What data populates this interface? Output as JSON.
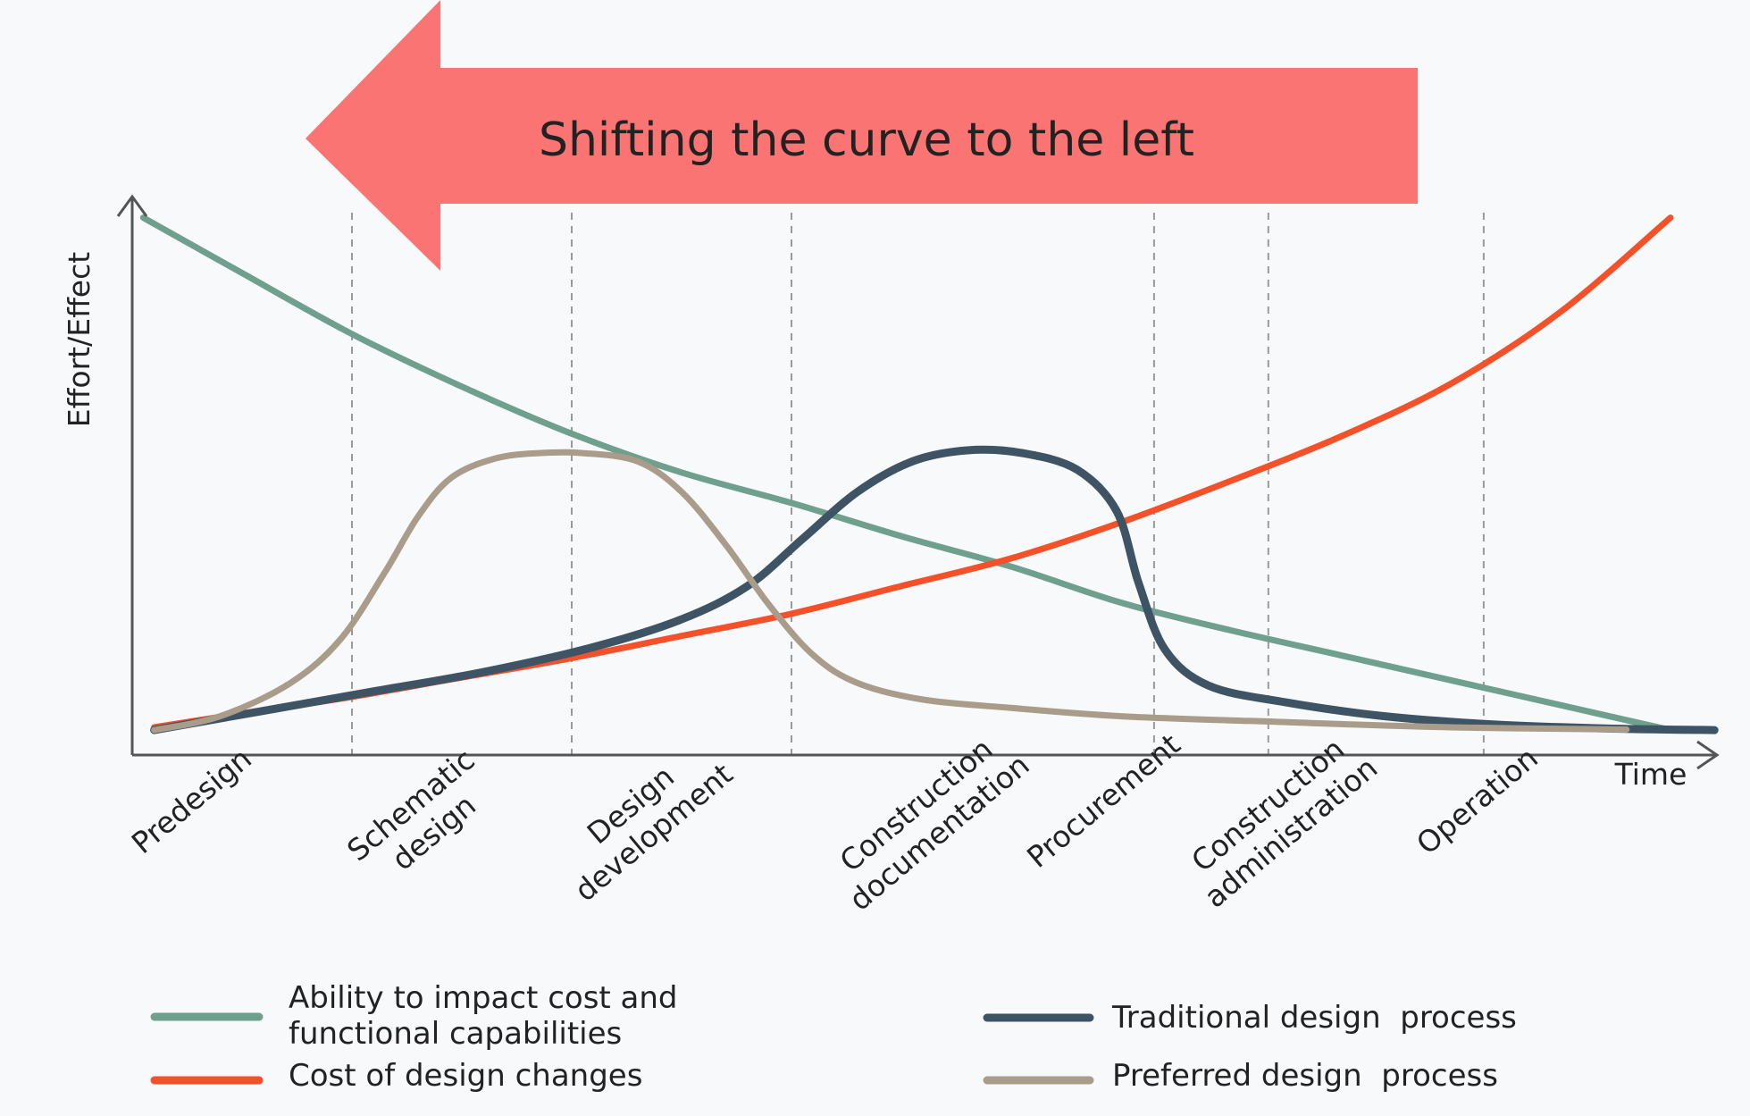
{
  "banner": {
    "text": "Shifting the curve to the left",
    "color": "#fb7474"
  },
  "chart_data": {
    "type": "line",
    "title": "",
    "xlabel": "Time",
    "ylabel": "Effort/Effect",
    "x_range": [
      0,
      7
    ],
    "ylim": [
      0,
      100
    ],
    "grid": "vertical dashed lines at phase boundaries",
    "legend_position": "bottom",
    "phases": [
      {
        "label": [
          "Predesign"
        ],
        "x": 0.3
      },
      {
        "label": [
          "Schematic",
          "design"
        ],
        "x": 1.35
      },
      {
        "label": [
          "Design",
          "development"
        ],
        "x": 2.35
      },
      {
        "label": [
          "Construction",
          "documentation"
        ],
        "x": 3.65
      },
      {
        "label": [
          "Procurement"
        ],
        "x": 4.45
      },
      {
        "label": [
          "Construction",
          "administration"
        ],
        "x": 5.25
      },
      {
        "label": [
          "Operation"
        ],
        "x": 6.15
      }
    ],
    "boundaries": [
      1.0,
      2.0,
      3.0,
      4.65,
      5.17,
      6.15
    ],
    "series": [
      {
        "name": "Ability to impact cost and functional capabilities",
        "legend_lines": [
          "Ability to impact cost and",
          "functional capabilities"
        ],
        "color": "#6fa08e",
        "width": 7,
        "points": [
          [
            0.05,
            97
          ],
          [
            0.5,
            87
          ],
          [
            1.0,
            76
          ],
          [
            1.5,
            66.5
          ],
          [
            2.0,
            58
          ],
          [
            2.5,
            51
          ],
          [
            3.0,
            45.5
          ],
          [
            3.5,
            39.5
          ],
          [
            4.0,
            34
          ],
          [
            4.5,
            27.5
          ],
          [
            5.0,
            22.5
          ],
          [
            5.5,
            18
          ],
          [
            6.0,
            13.5
          ],
          [
            6.5,
            9
          ],
          [
            7.0,
            4.5
          ]
        ]
      },
      {
        "name": "Cost of design changes",
        "legend_lines": [
          "Cost of design changes"
        ],
        "color": "#f2512a",
        "width": 7,
        "points": [
          [
            0.1,
            5
          ],
          [
            0.5,
            7.5
          ],
          [
            1.0,
            10.5
          ],
          [
            1.5,
            14
          ],
          [
            2.0,
            17.5
          ],
          [
            2.5,
            21.5
          ],
          [
            3.0,
            25.5
          ],
          [
            3.5,
            30.5
          ],
          [
            4.0,
            35.5
          ],
          [
            4.5,
            42
          ],
          [
            5.0,
            49.5
          ],
          [
            5.5,
            57.5
          ],
          [
            6.0,
            67
          ],
          [
            6.5,
            80
          ],
          [
            7.0,
            97
          ]
        ]
      },
      {
        "name": "Traditional design process",
        "legend_lines": [
          "Traditional design  process"
        ],
        "color": "#3e5464",
        "width": 9,
        "points": [
          [
            0.1,
            4.5
          ],
          [
            0.6,
            8
          ],
          [
            1.1,
            11.5
          ],
          [
            1.6,
            15
          ],
          [
            2.1,
            19.5
          ],
          [
            2.5,
            24.5
          ],
          [
            2.8,
            30.5
          ],
          [
            3.05,
            39
          ],
          [
            3.3,
            47.5
          ],
          [
            3.55,
            53
          ],
          [
            3.8,
            55
          ],
          [
            4.05,
            54.5
          ],
          [
            4.3,
            51.5
          ],
          [
            4.48,
            44
          ],
          [
            4.58,
            31
          ],
          [
            4.7,
            19
          ],
          [
            4.9,
            12.5
          ],
          [
            5.25,
            9.5
          ],
          [
            5.7,
            7
          ],
          [
            6.2,
            5.5
          ],
          [
            6.7,
            4.8
          ],
          [
            7.2,
            4.5
          ]
        ]
      },
      {
        "name": "Preferred design process",
        "legend_lines": [
          "Preferred design  process"
        ],
        "color": "#aa9c8a",
        "width": 7,
        "points": [
          [
            0.1,
            4.5
          ],
          [
            0.4,
            7
          ],
          [
            0.72,
            13
          ],
          [
            0.95,
            21
          ],
          [
            1.15,
            33
          ],
          [
            1.3,
            43
          ],
          [
            1.45,
            50
          ],
          [
            1.65,
            53.5
          ],
          [
            1.85,
            54.5
          ],
          [
            2.05,
            54.5
          ],
          [
            2.3,
            53
          ],
          [
            2.5,
            47.5
          ],
          [
            2.7,
            38
          ],
          [
            2.9,
            27
          ],
          [
            3.1,
            18
          ],
          [
            3.3,
            13
          ],
          [
            3.6,
            10
          ],
          [
            4.0,
            8.5
          ],
          [
            4.5,
            7
          ],
          [
            5.2,
            6
          ],
          [
            6.0,
            5
          ],
          [
            6.8,
            4.6
          ]
        ]
      }
    ]
  }
}
